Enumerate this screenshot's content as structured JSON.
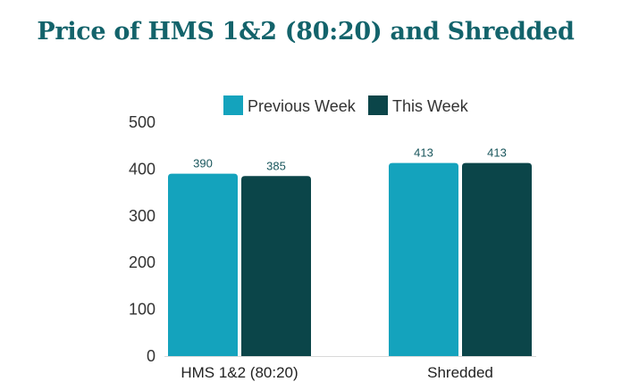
{
  "chart_data": {
    "type": "bar",
    "title": "Price of HMS 1&2 (80:20) and Shredded",
    "categories": [
      "HMS 1&2 (80:20)",
      "Shredded"
    ],
    "series": [
      {
        "name": "Previous Week",
        "values": [
          390,
          413
        ],
        "color": "#14a3bd"
      },
      {
        "name": "This Week",
        "values": [
          385,
          413
        ],
        "color": "#0b4549"
      }
    ],
    "ylim": [
      0,
      500
    ],
    "yticks": [
      "0",
      "100",
      "200",
      "300",
      "400",
      "500"
    ],
    "grid": false,
    "legend": "top-right",
    "data_labels": true
  }
}
